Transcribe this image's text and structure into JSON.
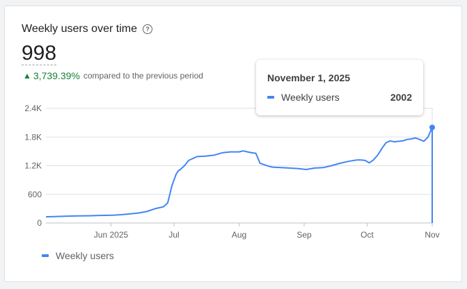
{
  "card": {
    "title": "Weekly users over time",
    "help_icon": "help-circle-icon",
    "metric_value": "998",
    "change_value": "3,739.39%",
    "change_label": "compared to the previous period",
    "change_icon": "arrow-up-icon"
  },
  "tooltip": {
    "date": "November 1, 2025",
    "series_label": "Weekly users",
    "value": "2002"
  },
  "legend": {
    "label": "Weekly users"
  },
  "colors": {
    "series": "#4285f4",
    "positive": "#188038",
    "grid": "#e0e0e0"
  },
  "chart_data": {
    "type": "line",
    "title": "",
    "xlabel": "",
    "ylabel": "",
    "ylim": [
      0,
      2400
    ],
    "yticks": [
      "0",
      "600",
      "1.2K",
      "1.8K",
      "2.4K"
    ],
    "ytick_values": [
      0,
      600,
      1200,
      1800,
      2400
    ],
    "xticks": [
      "Jun 2025",
      "Jul",
      "Aug",
      "Sep",
      "Oct",
      "Nov"
    ],
    "xtick_days": [
      31,
      61,
      92,
      123,
      153,
      184
    ],
    "xlim_days": [
      0,
      184
    ],
    "series": [
      {
        "name": "Weekly users",
        "x_days": [
          0,
          4,
          8,
          12,
          16,
          20,
          24,
          28,
          32,
          36,
          40,
          44,
          48,
          52,
          54,
          56,
          58,
          59,
          60,
          61,
          62,
          63,
          64,
          66,
          68,
          72,
          76,
          80,
          84,
          88,
          92,
          94,
          96,
          98,
          100,
          102,
          104,
          106,
          108,
          112,
          116,
          120,
          124,
          128,
          132,
          136,
          140,
          144,
          148,
          150,
          152,
          154,
          156,
          158,
          160,
          162,
          164,
          166,
          168,
          170,
          172,
          174,
          176,
          178,
          180,
          182,
          184,
          184
        ],
        "values": [
          130,
          135,
          140,
          145,
          148,
          152,
          155,
          160,
          165,
          175,
          190,
          210,
          240,
          300,
          320,
          340,
          420,
          600,
          780,
          900,
          1020,
          1090,
          1120,
          1200,
          1310,
          1390,
          1400,
          1420,
          1470,
          1490,
          1490,
          1510,
          1490,
          1470,
          1460,
          1250,
          1220,
          1190,
          1170,
          1160,
          1150,
          1140,
          1120,
          1150,
          1160,
          1200,
          1250,
          1290,
          1320,
          1320,
          1310,
          1260,
          1320,
          1420,
          1560,
          1680,
          1720,
          1700,
          1710,
          1720,
          1750,
          1760,
          1780,
          1750,
          1710,
          1800,
          2002,
          0
        ]
      }
    ]
  }
}
